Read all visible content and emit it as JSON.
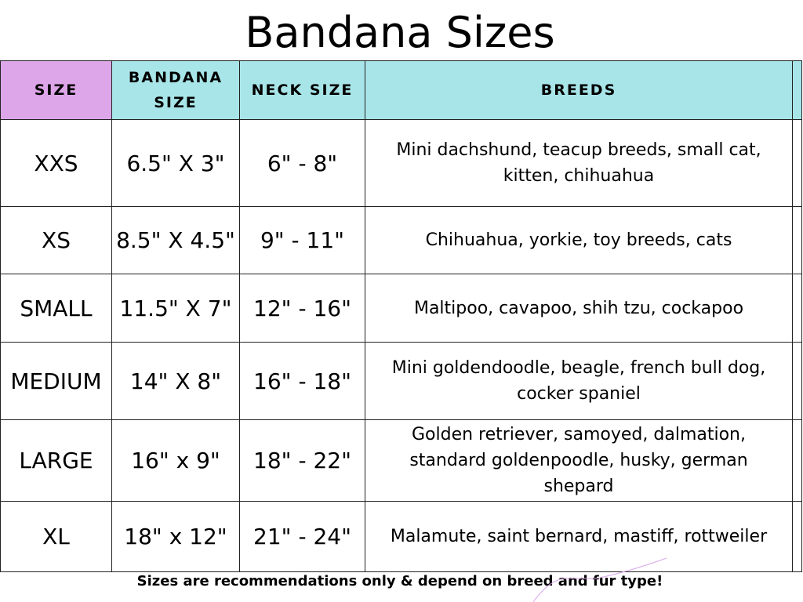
{
  "title": "Bandana Sizes",
  "headers": [
    "SIZE",
    "BANDANA SIZE",
    "NECK SIZE",
    "BREEDS"
  ],
  "rows": [
    {
      "size": "XXS",
      "bandana": "6.5\" X 3\"",
      "neck": "6\" - 8\"",
      "breeds": "Mini dachshund, teacup breeds, small cat, kitten, chihuahua"
    },
    {
      "size": "XS",
      "bandana": "8.5\" X 4.5\"",
      "neck": "9\" - 11\"",
      "breeds": "Chihuahua, yorkie, toy breeds, cats"
    },
    {
      "size": "SMALL",
      "bandana": "11.5\" X 7\"",
      "neck": "12\" - 16\"",
      "breeds": "Maltipoo, cavapoo, shih tzu, cockapoo"
    },
    {
      "size": "MEDIUM",
      "bandana": "14\" X 8\"",
      "neck": "16\" - 18\"",
      "breeds": "Mini goldendoodle, beagle, french bull dog, cocker spaniel"
    },
    {
      "size": "LARGE",
      "bandana": "16\"  x  9\"",
      "neck": "18\" - 22\"",
      "breeds": "Golden retriever, samoyed, dalmation, standard goldenpoodle, husky, german shepard"
    },
    {
      "size": "XL",
      "bandana": "18\" x 12\"",
      "neck": "21\" - 24\"",
      "breeds": "Malamute, saint bernard, mastiff, rottweiler"
    }
  ],
  "footer": "Sizes are recommendations only & depend on breed and fur type!",
  "colors": {
    "size_header": "#dda6e8",
    "header": "#a8e5e8"
  }
}
